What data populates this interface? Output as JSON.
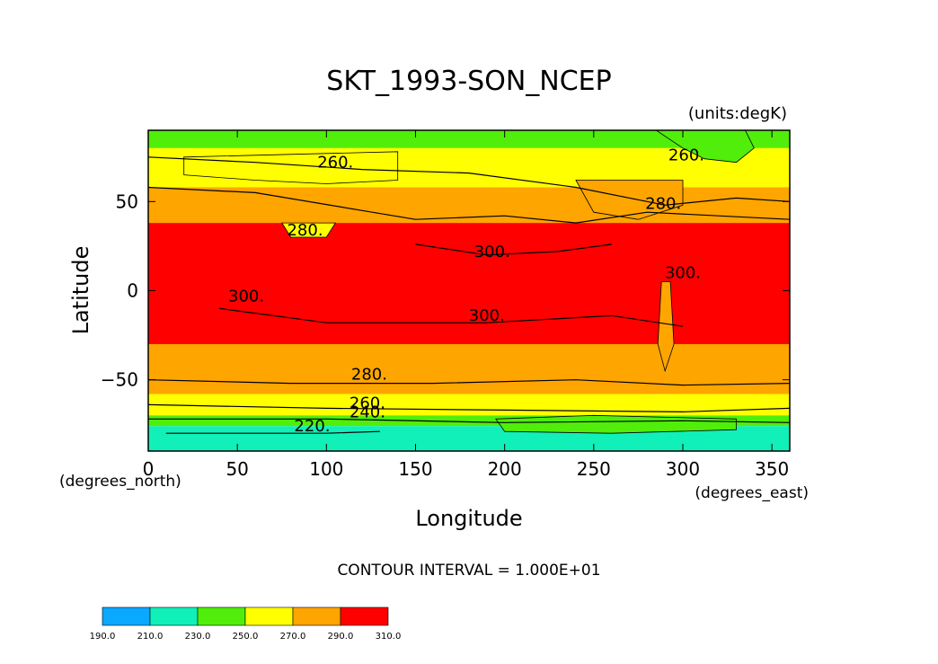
{
  "chart_data": {
    "type": "heatmap",
    "title": "SKT_1993-SON_NCEP",
    "units_label": "(units:degK)",
    "xlabel": "Longitude",
    "ylabel": "Latitude",
    "x_units": "(degrees_east)",
    "y_units": "(degrees_north)",
    "xlim": [
      0,
      360
    ],
    "ylim": [
      -90,
      90
    ],
    "x_ticks": [
      0,
      50,
      100,
      150,
      200,
      250,
      300,
      350
    ],
    "y_ticks": [
      50,
      0,
      -50
    ],
    "x_tick_labels": [
      "0",
      "50",
      "100",
      "150",
      "200",
      "250",
      "300",
      "350"
    ],
    "y_tick_labels": [
      "50",
      "0",
      "−50"
    ],
    "contour_interval_text": "CONTOUR INTERVAL = 1.000E+01",
    "contour_labels": [
      {
        "text": "260.",
        "lon": 105,
        "lat": 69
      },
      {
        "text": "280.",
        "lon": 88,
        "lat": 31
      },
      {
        "text": "300.",
        "lon": 55,
        "lat": -6
      },
      {
        "text": "300.",
        "lon": 193,
        "lat": 19
      },
      {
        "text": "300.",
        "lon": 190,
        "lat": -17
      },
      {
        "text": "300.",
        "lon": 300,
        "lat": 7
      },
      {
        "text": "280.",
        "lon": 289,
        "lat": 46
      },
      {
        "text": "260.",
        "lon": 302,
        "lat": 73
      },
      {
        "text": "280.",
        "lon": 124,
        "lat": -50
      },
      {
        "text": "260.",
        "lon": 123,
        "lat": -66
      },
      {
        "text": "240.",
        "lon": 123,
        "lat": -71
      },
      {
        "text": "220.",
        "lon": 92,
        "lat": -79
      }
    ],
    "colorbar": {
      "levels": [
        "190.0",
        "210.0",
        "230.0",
        "250.0",
        "270.0",
        "290.0",
        "310.0"
      ],
      "colors": [
        "#0aa8ff",
        "#10f0b8",
        "#50ee0a",
        "#ffff00",
        "#ffa500",
        "#ff0000"
      ]
    },
    "zones": [
      {
        "range": "230-250",
        "color": "#50ee0a",
        "lat_from": 90,
        "lat_to": 80
      },
      {
        "range": "250-270",
        "color": "#ffff00",
        "lat_from": 80,
        "lat_to": 58
      },
      {
        "range": "270-290",
        "color": "#ffa500",
        "lat_from": 58,
        "lat_to": 38
      },
      {
        "range": "290-310",
        "color": "#ff0000",
        "lat_from": 38,
        "lat_to": -30
      },
      {
        "range": "270-290",
        "color": "#ffa500",
        "lat_from": -30,
        "lat_to": -58
      },
      {
        "range": "250-270",
        "color": "#ffff00",
        "lat_from": -58,
        "lat_to": -70
      },
      {
        "range": "230-250",
        "color": "#50ee0a",
        "lat_from": -70,
        "lat_to": -76
      },
      {
        "range": "210-230",
        "color": "#10f0b8",
        "lat_from": -76,
        "lat_to": -90
      }
    ]
  }
}
